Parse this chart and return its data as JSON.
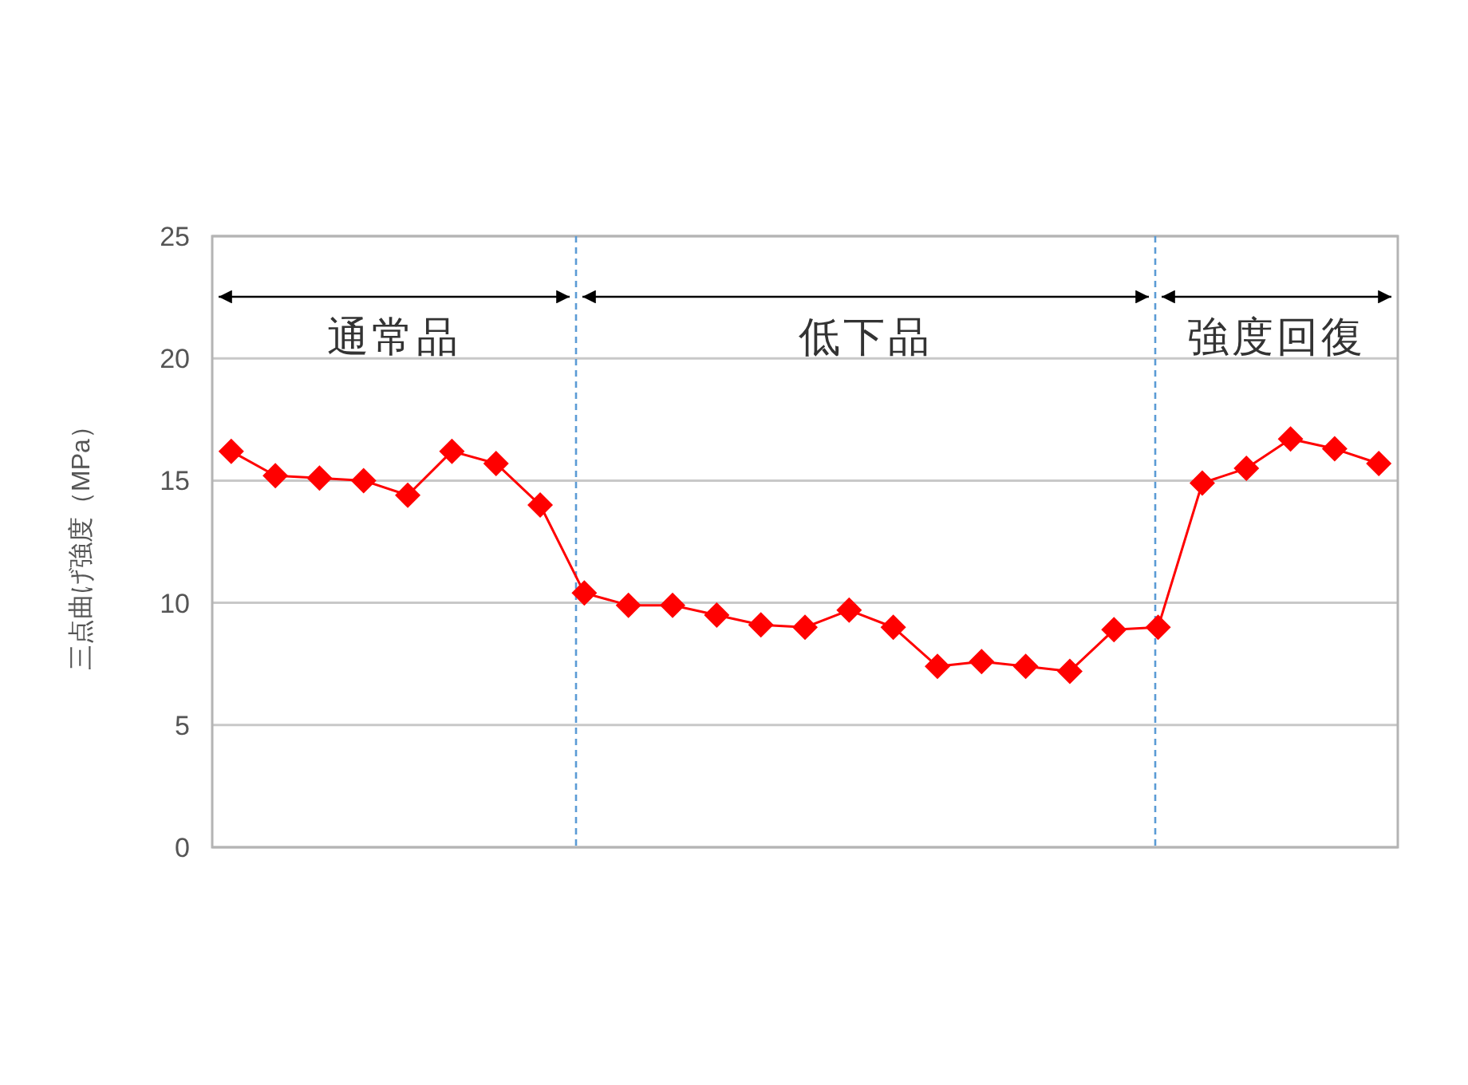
{
  "chart_data": {
    "type": "line",
    "ylabel": "三点曲げ強度（MPa）",
    "categories": [
      null,
      null,
      null,
      null,
      null,
      null,
      null,
      null,
      null,
      null,
      null,
      null,
      null,
      null,
      null,
      null,
      null,
      null,
      null,
      null,
      null,
      null,
      null,
      null,
      null,
      null,
      null
    ],
    "series": [
      {
        "color": "#ff0000",
        "values": [
          16.2,
          15.2,
          15.1,
          15.0,
          14.4,
          16.2,
          15.7,
          14.0,
          10.4,
          9.9,
          9.9,
          9.5,
          9.1,
          9.0,
          9.7,
          9.0,
          7.4,
          7.6,
          7.4,
          7.2,
          8.9,
          9.0,
          14.9,
          15.5,
          16.7,
          16.3,
          15.7
        ]
      }
    ],
    "ylim": [
      0,
      25
    ],
    "yticks": [
      0,
      5,
      10,
      15,
      20,
      25
    ],
    "grid": "y",
    "marker": "diamond",
    "line_style": "solid",
    "annotations": [
      "通常品",
      "低下品",
      "強度回復"
    ]
  }
}
